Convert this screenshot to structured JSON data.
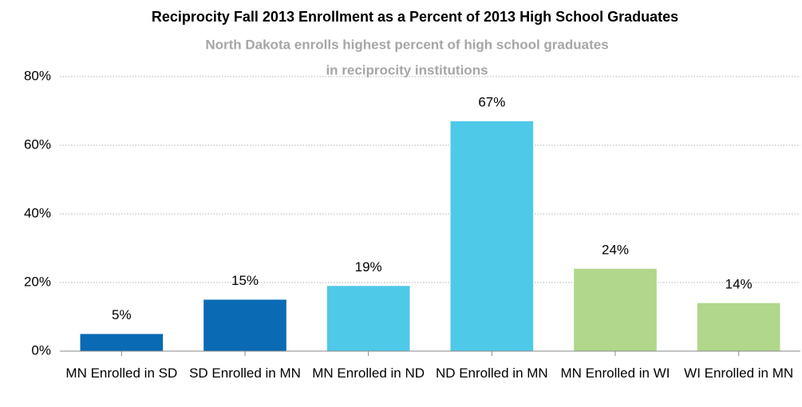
{
  "chart_data": {
    "type": "bar",
    "title": "Reciprocity Fall 2013 Enrollment as a Percent of 2013 High School Graduates",
    "subtitle": [
      "North Dakota enrolls highest percent of high school graduates",
      "in reciprocity institutions"
    ],
    "categories": [
      "MN Enrolled in SD",
      "SD Enrolled in MN",
      "MN Enrolled in ND",
      "ND Enrolled in MN",
      "MN Enrolled in WI",
      "WI Enrolled in MN"
    ],
    "values": [
      5,
      15,
      19,
      67,
      24,
      14
    ],
    "value_labels": [
      "5%",
      "15%",
      "19%",
      "67%",
      "24%",
      "14%"
    ],
    "colors": [
      "#0a6ab4",
      "#0a6ab4",
      "#4fc9e8",
      "#4fc9e8",
      "#b0d78a",
      "#b0d78a"
    ],
    "ylim": [
      0,
      80
    ],
    "yticks": [
      {
        "value": 0,
        "label": "0%"
      },
      {
        "value": 20,
        "label": "20%"
      },
      {
        "value": 40,
        "label": "40%"
      },
      {
        "value": 60,
        "label": "60%"
      },
      {
        "value": 80,
        "label": "80%"
      }
    ],
    "grid": true
  }
}
